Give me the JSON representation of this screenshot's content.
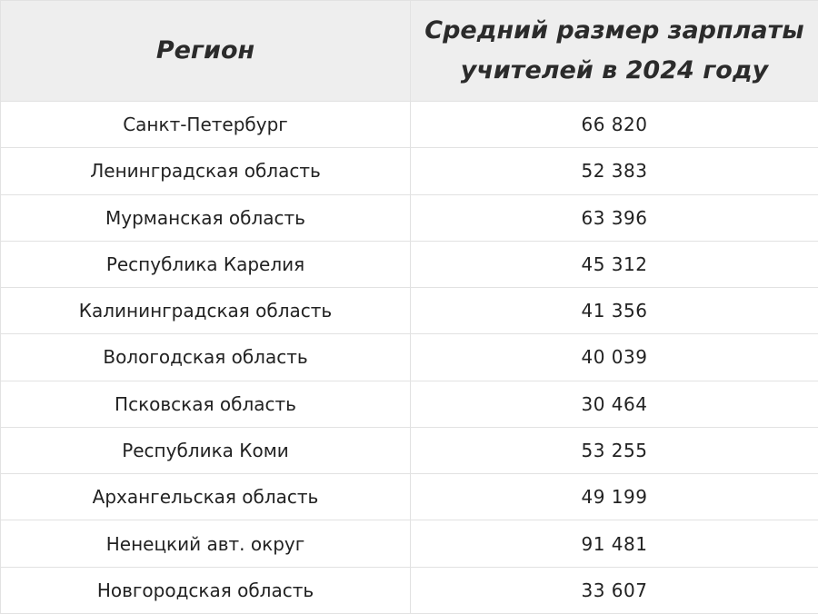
{
  "table": {
    "headers": {
      "region": "Регион",
      "salary": "Средний размер зарплаты учителей в 2024 году"
    },
    "rows": [
      {
        "region": "Санкт-Петербург",
        "salary": "66 820"
      },
      {
        "region": "Ленинградская область",
        "salary": "52 383"
      },
      {
        "region": "Мурманская область",
        "salary": "63 396"
      },
      {
        "region": "Республика Карелия",
        "salary": "45 312"
      },
      {
        "region": "Калининградская область",
        "salary": "41 356"
      },
      {
        "region": "Вологодская область",
        "salary": "40 039"
      },
      {
        "region": "Псковская область",
        "salary": "30 464"
      },
      {
        "region": "Республика Коми",
        "salary": "53 255"
      },
      {
        "region": "Архангельская область",
        "salary": "49 199"
      },
      {
        "region": "Ненецкий авт. округ",
        "salary": "91 481"
      },
      {
        "region": "Новгородская область",
        "salary": "33 607"
      }
    ]
  },
  "colors": {
    "header_background": "#eeeeee",
    "border": "#e2e2e2",
    "text": "#222222"
  }
}
